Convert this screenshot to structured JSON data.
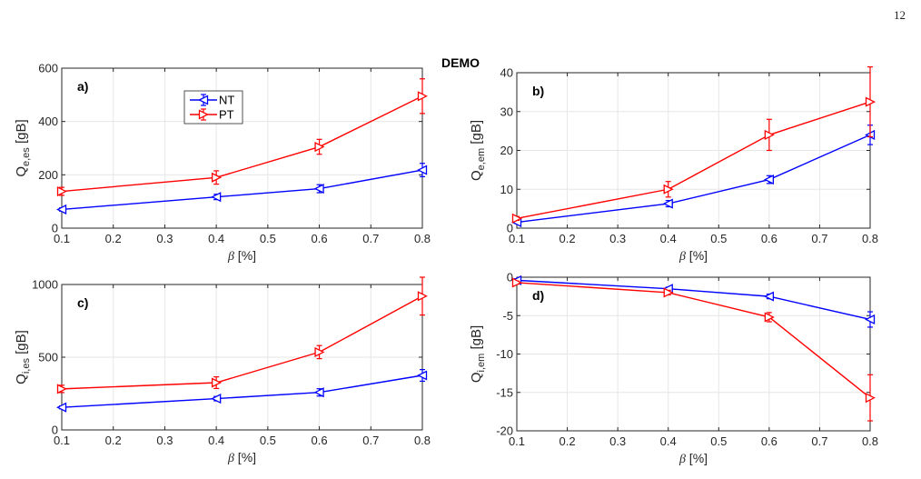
{
  "page": {
    "number": "12",
    "watermark": "DEMO"
  },
  "colors": {
    "NT": "#0000ff",
    "PT": "#ff0000",
    "grid": "#e6e6e6",
    "axis": "#262626"
  },
  "chart_data": [
    {
      "type": "line",
      "panel_label": "a)",
      "xlabel": "β [%]",
      "ylabel": "Q_e,es [gB]",
      "xlim": [
        0.1,
        0.8
      ],
      "ylim": [
        0,
        600
      ],
      "xticks": [
        0.1,
        0.2,
        0.3,
        0.4,
        0.5,
        0.6,
        0.7,
        0.8
      ],
      "xtick_labels": [
        "0.1",
        "0.2",
        "0.3",
        "0.4",
        "0.5",
        "0.6",
        "0.7",
        "0.8"
      ],
      "yticks": [
        0,
        200,
        400,
        600
      ],
      "ytick_labels": [
        "0",
        "200",
        "400",
        "600"
      ],
      "grid": true,
      "legend": {
        "location": "upper-left",
        "entries": [
          "NT",
          "PT"
        ]
      },
      "x": [
        0.1,
        0.4,
        0.6,
        0.8
      ],
      "series": [
        {
          "name": "NT",
          "marker": "triangle-left",
          "values": [
            70,
            117,
            148,
            218
          ],
          "errors": [
            6,
            10,
            15,
            25
          ]
        },
        {
          "name": "PT",
          "marker": "triangle-right",
          "values": [
            138,
            190,
            305,
            495
          ],
          "errors": [
            15,
            25,
            28,
            65
          ]
        }
      ]
    },
    {
      "type": "line",
      "panel_label": "b)",
      "xlabel": "β [%]",
      "ylabel": "Q_e,em [gB]",
      "xlim": [
        0.1,
        0.8
      ],
      "ylim": [
        0,
        40
      ],
      "xticks": [
        0.1,
        0.2,
        0.3,
        0.4,
        0.5,
        0.6,
        0.7,
        0.8
      ],
      "xtick_labels": [
        "0.1",
        "0.2",
        "0.3",
        "0.4",
        "0.5",
        "0.6",
        "0.7",
        "0.8"
      ],
      "yticks": [
        0,
        10,
        20,
        30,
        40
      ],
      "ytick_labels": [
        "0",
        "10",
        "20",
        "30",
        "40"
      ],
      "grid": true,
      "x": [
        0.1,
        0.4,
        0.6,
        0.8
      ],
      "series": [
        {
          "name": "NT",
          "marker": "triangle-left",
          "values": [
            1.5,
            6.3,
            12.5,
            24
          ],
          "errors": [
            0.3,
            0.8,
            1.0,
            2.5
          ]
        },
        {
          "name": "PT",
          "marker": "triangle-right",
          "values": [
            2.5,
            10,
            24,
            32.5
          ],
          "errors": [
            0.5,
            2.0,
            4.0,
            9
          ]
        }
      ]
    },
    {
      "type": "line",
      "panel_label": "c)",
      "xlabel": "β [%]",
      "ylabel": "Q_i,es [gB]",
      "xlim": [
        0.1,
        0.8
      ],
      "ylim": [
        0,
        1000
      ],
      "xticks": [
        0.1,
        0.2,
        0.3,
        0.4,
        0.5,
        0.6,
        0.7,
        0.8
      ],
      "xtick_labels": [
        "0.1",
        "0.2",
        "0.3",
        "0.4",
        "0.5",
        "0.6",
        "0.7",
        "0.8"
      ],
      "yticks": [
        0,
        500,
        1000
      ],
      "ytick_labels": [
        "0",
        "500",
        "1000"
      ],
      "grid": true,
      "x": [
        0.1,
        0.4,
        0.6,
        0.8
      ],
      "series": [
        {
          "name": "NT",
          "marker": "triangle-left",
          "values": [
            155,
            215,
            258,
            375
          ],
          "errors": [
            10,
            15,
            25,
            40
          ]
        },
        {
          "name": "PT",
          "marker": "triangle-right",
          "values": [
            282,
            325,
            535,
            920
          ],
          "errors": [
            25,
            40,
            45,
            130
          ]
        }
      ]
    },
    {
      "type": "line",
      "panel_label": "d)",
      "xlabel": "β [%]",
      "ylabel": "Q_i,em [gB]",
      "xlim": [
        0.1,
        0.8
      ],
      "ylim": [
        -20,
        0
      ],
      "xticks": [
        0.1,
        0.2,
        0.3,
        0.4,
        0.5,
        0.6,
        0.7,
        0.8
      ],
      "xtick_labels": [
        "0.1",
        "0.2",
        "0.3",
        "0.4",
        "0.5",
        "0.6",
        "0.7",
        "0.8"
      ],
      "yticks": [
        -20,
        -15,
        -10,
        -5,
        0
      ],
      "ytick_labels": [
        "-20",
        "-15",
        "-10",
        "-5",
        "0"
      ],
      "grid": true,
      "x": [
        0.1,
        0.4,
        0.6,
        0.8
      ],
      "series": [
        {
          "name": "NT",
          "marker": "triangle-left",
          "values": [
            -0.4,
            -1.5,
            -2.5,
            -5.5
          ],
          "errors": [
            0.2,
            0.2,
            0.3,
            1.0
          ]
        },
        {
          "name": "PT",
          "marker": "triangle-right",
          "values": [
            -0.7,
            -2.0,
            -5.2,
            -15.7
          ],
          "errors": [
            0.2,
            0.3,
            0.6,
            3.0
          ]
        }
      ]
    }
  ]
}
